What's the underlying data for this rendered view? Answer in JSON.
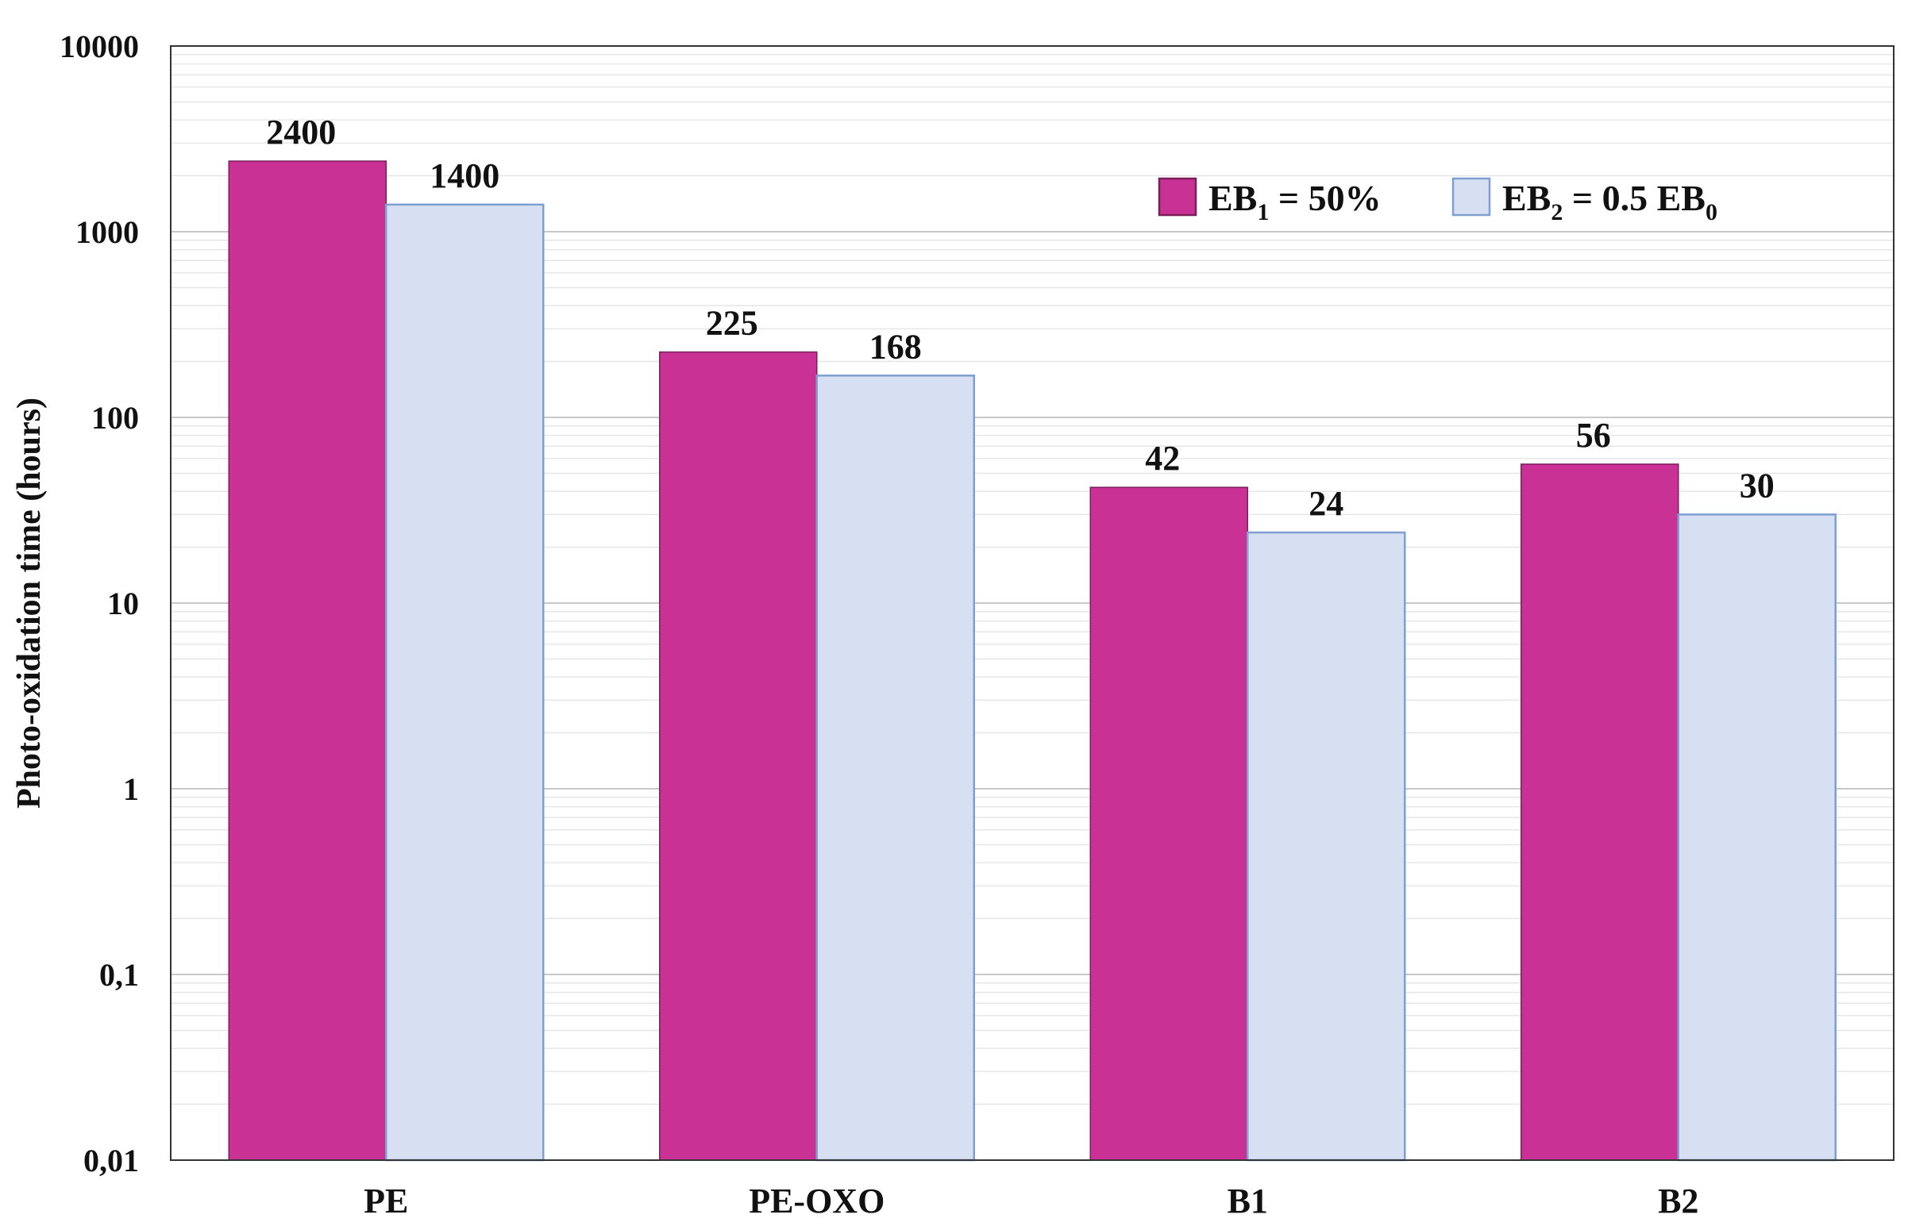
{
  "chart_data": {
    "type": "bar",
    "categories": [
      "PE",
      "PE-OXO",
      "B1",
      "B2"
    ],
    "series": [
      {
        "name": "EB1 = 50%",
        "legend_main": "EB",
        "legend_sub": "1",
        "legend_rest": " = 50%",
        "color": "#C93294",
        "values": [
          2400,
          225,
          42,
          56
        ],
        "labels": [
          "2400",
          "225",
          "42",
          "56"
        ]
      },
      {
        "name": "EB2 = 0.5 EB0",
        "legend_main": "EB",
        "legend_sub": "2",
        "legend_rest": " = 0.5 EB",
        "legend_sub2": "0",
        "color": "#D6E0F2",
        "edge": "#7F9FD0",
        "values": [
          1400,
          168,
          24,
          30
        ],
        "labels": [
          "1400",
          "168",
          "24",
          "30"
        ]
      }
    ],
    "xlabel": "",
    "ylabel": "Photo-oxidation time (hours)",
    "yscale": "log",
    "ylim": [
      0.01,
      10000
    ],
    "yticks": [
      0.01,
      0.1,
      1,
      10,
      100,
      1000,
      10000
    ],
    "ytick_labels": [
      "0,01",
      "0,1",
      "1",
      "10",
      "100",
      "1000",
      "10000"
    ],
    "grid": true,
    "legend": "top-right"
  }
}
